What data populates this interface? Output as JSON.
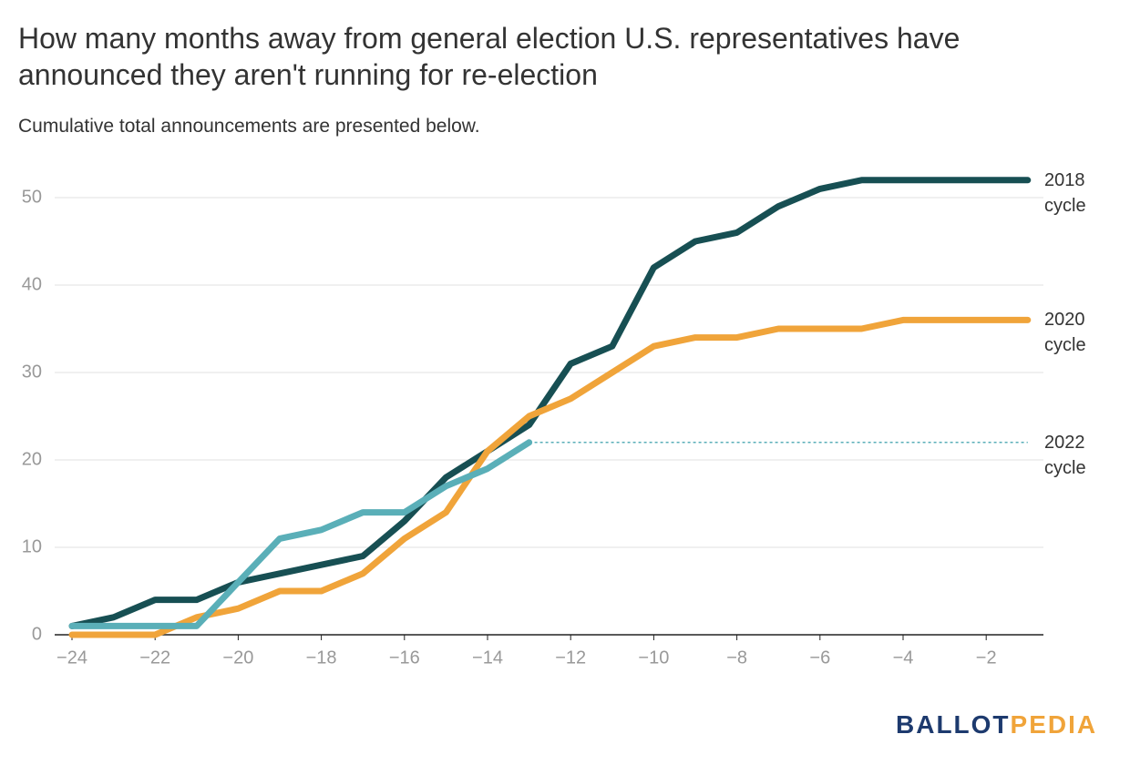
{
  "chart_data": {
    "type": "line",
    "title": "How many months away from general election U.S. representatives have announced they aren't running for re-election",
    "subtitle": "Cumulative total announcements are presented below.",
    "x": [
      -24,
      -23,
      -22,
      -21,
      -20,
      -19,
      -18,
      -17,
      -16,
      -15,
      -14,
      -13,
      -12,
      -11,
      -10,
      -9,
      -8,
      -7,
      -6,
      -5,
      -4,
      -3,
      -2,
      -1
    ],
    "series": [
      {
        "name": "2018 cycle",
        "color": "#174f53",
        "values": [
          1,
          2,
          4,
          4,
          6,
          7,
          8,
          9,
          13,
          18,
          21,
          24,
          31,
          33,
          42,
          45,
          46,
          49,
          51,
          52,
          52,
          52,
          52,
          52
        ]
      },
      {
        "name": "2020 cycle",
        "color": "#f0a43a",
        "values": [
          0,
          0,
          0,
          2,
          3,
          5,
          5,
          7,
          11,
          14,
          21,
          25,
          27,
          30,
          33,
          34,
          34,
          35,
          35,
          35,
          36,
          36,
          36,
          36
        ]
      },
      {
        "name": "2022 cycle",
        "color": "#5aafb8",
        "values": [
          1,
          1,
          1,
          1,
          6,
          11,
          12,
          14,
          14,
          17,
          19,
          22,
          null,
          null,
          null,
          null,
          null,
          null,
          null,
          null,
          null,
          null,
          null,
          null
        ]
      }
    ],
    "xlim": [
      -24,
      -1
    ],
    "ylim": [
      0,
      50
    ],
    "xticks": [
      {
        "value": -24,
        "label": "−24"
      },
      {
        "value": -22,
        "label": "−22"
      },
      {
        "value": -20,
        "label": "−20"
      },
      {
        "value": -18,
        "label": "−18"
      },
      {
        "value": -16,
        "label": "−16"
      },
      {
        "value": -14,
        "label": "−14"
      },
      {
        "value": -12,
        "label": "−12"
      },
      {
        "value": -10,
        "label": "−10"
      },
      {
        "value": -8,
        "label": "−8"
      },
      {
        "value": -6,
        "label": "−6"
      },
      {
        "value": -4,
        "label": "−4"
      },
      {
        "value": -2,
        "label": "−2"
      }
    ],
    "yticks": [
      0,
      10,
      20,
      30,
      40,
      50
    ],
    "grid": true,
    "logo": [
      "BALLOT",
      "PEDIA"
    ]
  }
}
